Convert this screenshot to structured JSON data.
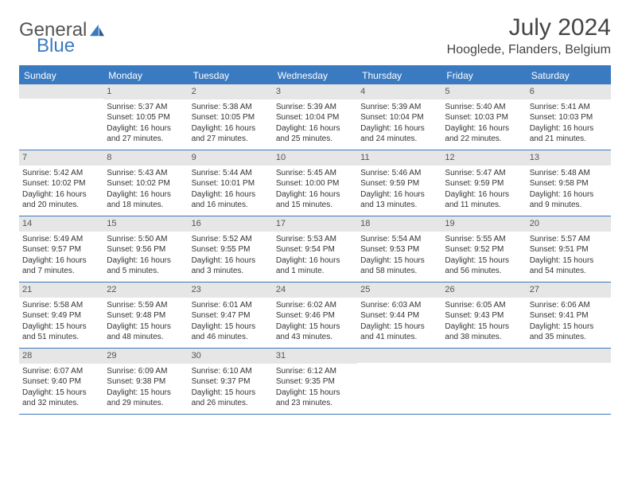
{
  "logo": {
    "text1": "General",
    "text2": "Blue"
  },
  "title": "July 2024",
  "location": "Hooglede, Flanders, Belgium",
  "colors": {
    "accent": "#3a7ac0",
    "header_bg": "#3a7ac0",
    "daynum_bg": "#e6e6e6",
    "border": "#3a7ac0",
    "text": "#333333",
    "title_text": "#444444"
  },
  "weekdays": [
    "Sunday",
    "Monday",
    "Tuesday",
    "Wednesday",
    "Thursday",
    "Friday",
    "Saturday"
  ],
  "weeks": [
    [
      {
        "num": "",
        "lines": []
      },
      {
        "num": "1",
        "lines": [
          "Sunrise: 5:37 AM",
          "Sunset: 10:05 PM",
          "Daylight: 16 hours and 27 minutes."
        ]
      },
      {
        "num": "2",
        "lines": [
          "Sunrise: 5:38 AM",
          "Sunset: 10:05 PM",
          "Daylight: 16 hours and 27 minutes."
        ]
      },
      {
        "num": "3",
        "lines": [
          "Sunrise: 5:39 AM",
          "Sunset: 10:04 PM",
          "Daylight: 16 hours and 25 minutes."
        ]
      },
      {
        "num": "4",
        "lines": [
          "Sunrise: 5:39 AM",
          "Sunset: 10:04 PM",
          "Daylight: 16 hours and 24 minutes."
        ]
      },
      {
        "num": "5",
        "lines": [
          "Sunrise: 5:40 AM",
          "Sunset: 10:03 PM",
          "Daylight: 16 hours and 22 minutes."
        ]
      },
      {
        "num": "6",
        "lines": [
          "Sunrise: 5:41 AM",
          "Sunset: 10:03 PM",
          "Daylight: 16 hours and 21 minutes."
        ]
      }
    ],
    [
      {
        "num": "7",
        "lines": [
          "Sunrise: 5:42 AM",
          "Sunset: 10:02 PM",
          "Daylight: 16 hours and 20 minutes."
        ]
      },
      {
        "num": "8",
        "lines": [
          "Sunrise: 5:43 AM",
          "Sunset: 10:02 PM",
          "Daylight: 16 hours and 18 minutes."
        ]
      },
      {
        "num": "9",
        "lines": [
          "Sunrise: 5:44 AM",
          "Sunset: 10:01 PM",
          "Daylight: 16 hours and 16 minutes."
        ]
      },
      {
        "num": "10",
        "lines": [
          "Sunrise: 5:45 AM",
          "Sunset: 10:00 PM",
          "Daylight: 16 hours and 15 minutes."
        ]
      },
      {
        "num": "11",
        "lines": [
          "Sunrise: 5:46 AM",
          "Sunset: 9:59 PM",
          "Daylight: 16 hours and 13 minutes."
        ]
      },
      {
        "num": "12",
        "lines": [
          "Sunrise: 5:47 AM",
          "Sunset: 9:59 PM",
          "Daylight: 16 hours and 11 minutes."
        ]
      },
      {
        "num": "13",
        "lines": [
          "Sunrise: 5:48 AM",
          "Sunset: 9:58 PM",
          "Daylight: 16 hours and 9 minutes."
        ]
      }
    ],
    [
      {
        "num": "14",
        "lines": [
          "Sunrise: 5:49 AM",
          "Sunset: 9:57 PM",
          "Daylight: 16 hours and 7 minutes."
        ]
      },
      {
        "num": "15",
        "lines": [
          "Sunrise: 5:50 AM",
          "Sunset: 9:56 PM",
          "Daylight: 16 hours and 5 minutes."
        ]
      },
      {
        "num": "16",
        "lines": [
          "Sunrise: 5:52 AM",
          "Sunset: 9:55 PM",
          "Daylight: 16 hours and 3 minutes."
        ]
      },
      {
        "num": "17",
        "lines": [
          "Sunrise: 5:53 AM",
          "Sunset: 9:54 PM",
          "Daylight: 16 hours and 1 minute."
        ]
      },
      {
        "num": "18",
        "lines": [
          "Sunrise: 5:54 AM",
          "Sunset: 9:53 PM",
          "Daylight: 15 hours and 58 minutes."
        ]
      },
      {
        "num": "19",
        "lines": [
          "Sunrise: 5:55 AM",
          "Sunset: 9:52 PM",
          "Daylight: 15 hours and 56 minutes."
        ]
      },
      {
        "num": "20",
        "lines": [
          "Sunrise: 5:57 AM",
          "Sunset: 9:51 PM",
          "Daylight: 15 hours and 54 minutes."
        ]
      }
    ],
    [
      {
        "num": "21",
        "lines": [
          "Sunrise: 5:58 AM",
          "Sunset: 9:49 PM",
          "Daylight: 15 hours and 51 minutes."
        ]
      },
      {
        "num": "22",
        "lines": [
          "Sunrise: 5:59 AM",
          "Sunset: 9:48 PM",
          "Daylight: 15 hours and 48 minutes."
        ]
      },
      {
        "num": "23",
        "lines": [
          "Sunrise: 6:01 AM",
          "Sunset: 9:47 PM",
          "Daylight: 15 hours and 46 minutes."
        ]
      },
      {
        "num": "24",
        "lines": [
          "Sunrise: 6:02 AM",
          "Sunset: 9:46 PM",
          "Daylight: 15 hours and 43 minutes."
        ]
      },
      {
        "num": "25",
        "lines": [
          "Sunrise: 6:03 AM",
          "Sunset: 9:44 PM",
          "Daylight: 15 hours and 41 minutes."
        ]
      },
      {
        "num": "26",
        "lines": [
          "Sunrise: 6:05 AM",
          "Sunset: 9:43 PM",
          "Daylight: 15 hours and 38 minutes."
        ]
      },
      {
        "num": "27",
        "lines": [
          "Sunrise: 6:06 AM",
          "Sunset: 9:41 PM",
          "Daylight: 15 hours and 35 minutes."
        ]
      }
    ],
    [
      {
        "num": "28",
        "lines": [
          "Sunrise: 6:07 AM",
          "Sunset: 9:40 PM",
          "Daylight: 15 hours and 32 minutes."
        ]
      },
      {
        "num": "29",
        "lines": [
          "Sunrise: 6:09 AM",
          "Sunset: 9:38 PM",
          "Daylight: 15 hours and 29 minutes."
        ]
      },
      {
        "num": "30",
        "lines": [
          "Sunrise: 6:10 AM",
          "Sunset: 9:37 PM",
          "Daylight: 15 hours and 26 minutes."
        ]
      },
      {
        "num": "31",
        "lines": [
          "Sunrise: 6:12 AM",
          "Sunset: 9:35 PM",
          "Daylight: 15 hours and 23 minutes."
        ]
      },
      {
        "num": "",
        "lines": []
      },
      {
        "num": "",
        "lines": []
      },
      {
        "num": "",
        "lines": []
      }
    ]
  ]
}
